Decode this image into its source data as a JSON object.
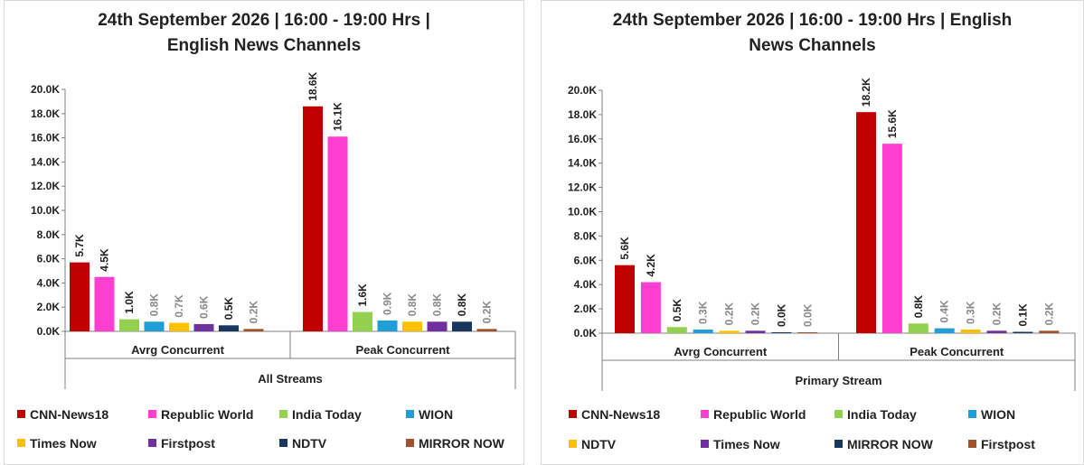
{
  "chart_data": [
    {
      "type": "bar",
      "title": "24th September 2026 | 16:00 - 19:00 Hrs | English News Channels",
      "title_lines": [
        "24th September 2026 | 16:00 - 19:00 Hrs |",
        "English News Channels"
      ],
      "group_label": "All Streams",
      "categories": [
        "Avrg Concurrent",
        "Peak Concurrent"
      ],
      "ylim": [
        0,
        20
      ],
      "yticks": [
        "0.0K",
        "2.0K",
        "4.0K",
        "6.0K",
        "8.0K",
        "10.0K",
        "12.0K",
        "14.0K",
        "16.0K",
        "18.0K",
        "20.0K"
      ],
      "grid": false,
      "legend_position": "bottom",
      "series": [
        {
          "name": "CNN-News18",
          "color": "#c00000",
          "values": [
            5.7,
            18.6
          ],
          "labels": [
            "5.7K",
            "18.6K"
          ]
        },
        {
          "name": "Republic World",
          "color": "#ff3fcf",
          "values": [
            4.5,
            16.1
          ],
          "labels": [
            "4.5K",
            "16.1K"
          ]
        },
        {
          "name": "India Today",
          "color": "#92d050",
          "values": [
            1.0,
            1.6
          ],
          "labels": [
            "1.0K",
            "1.6K"
          ]
        },
        {
          "name": "WION",
          "color": "#1f9fd5",
          "values": [
            0.8,
            0.9
          ],
          "labels": [
            "0.8K",
            "0.9K"
          ]
        },
        {
          "name": "Times Now",
          "color": "#ffc000",
          "values": [
            0.7,
            0.8
          ],
          "labels": [
            "0.7K",
            "0.8K"
          ]
        },
        {
          "name": "Firstpost",
          "color": "#7030a0",
          "values": [
            0.6,
            0.8
          ],
          "labels": [
            "0.6K",
            "0.8K"
          ]
        },
        {
          "name": "NDTV",
          "color": "#17375e",
          "values": [
            0.5,
            0.8
          ],
          "labels": [
            "0.5K",
            "0.8K"
          ]
        },
        {
          "name": "MIRROR NOW",
          "color": "#a0522d",
          "values": [
            0.2,
            0.2
          ],
          "labels": [
            "0.2K",
            "0.2K"
          ]
        }
      ]
    },
    {
      "type": "bar",
      "title": "24th September 2026 | 16:00 - 19:00 Hrs | English News Channels",
      "title_lines": [
        "24th September 2026 | 16:00 - 19:00 Hrs | English",
        "News Channels"
      ],
      "group_label": "Primary Stream",
      "categories": [
        "Avrg Concurrent",
        "Peak Concurrent"
      ],
      "ylim": [
        0,
        20
      ],
      "yticks": [
        "0.0K",
        "2.0K",
        "4.0K",
        "6.0K",
        "8.0K",
        "10.0K",
        "12.0K",
        "14.0K",
        "16.0K",
        "18.0K",
        "20.0K"
      ],
      "grid": false,
      "legend_position": "bottom",
      "series": [
        {
          "name": "CNN-News18",
          "color": "#c00000",
          "values": [
            5.6,
            18.2
          ],
          "labels": [
            "5.6K",
            "18.2K"
          ]
        },
        {
          "name": "Republic World",
          "color": "#ff3fcf",
          "values": [
            4.2,
            15.6
          ],
          "labels": [
            "4.2K",
            "15.6K"
          ]
        },
        {
          "name": "India Today",
          "color": "#92d050",
          "values": [
            0.5,
            0.8
          ],
          "labels": [
            "0.5K",
            "0.8K"
          ]
        },
        {
          "name": "WION",
          "color": "#1f9fd5",
          "values": [
            0.3,
            0.4
          ],
          "labels": [
            "0.3K",
            "0.4K"
          ]
        },
        {
          "name": "NDTV",
          "color": "#ffc000",
          "values": [
            0.2,
            0.3
          ],
          "labels": [
            "0.2K",
            "0.3K"
          ]
        },
        {
          "name": "Times Now",
          "color": "#7030a0",
          "values": [
            0.2,
            0.2
          ],
          "labels": [
            "0.2K",
            "0.2K"
          ]
        },
        {
          "name": "MIRROR NOW",
          "color": "#17375e",
          "values": [
            0.0,
            0.1
          ],
          "labels": [
            "0.0K",
            "0.1K"
          ]
        },
        {
          "name": "Firstpost",
          "color": "#a0522d",
          "values": [
            0.0,
            0.2
          ],
          "labels": [
            "0.0K",
            "0.2K"
          ]
        }
      ]
    }
  ]
}
